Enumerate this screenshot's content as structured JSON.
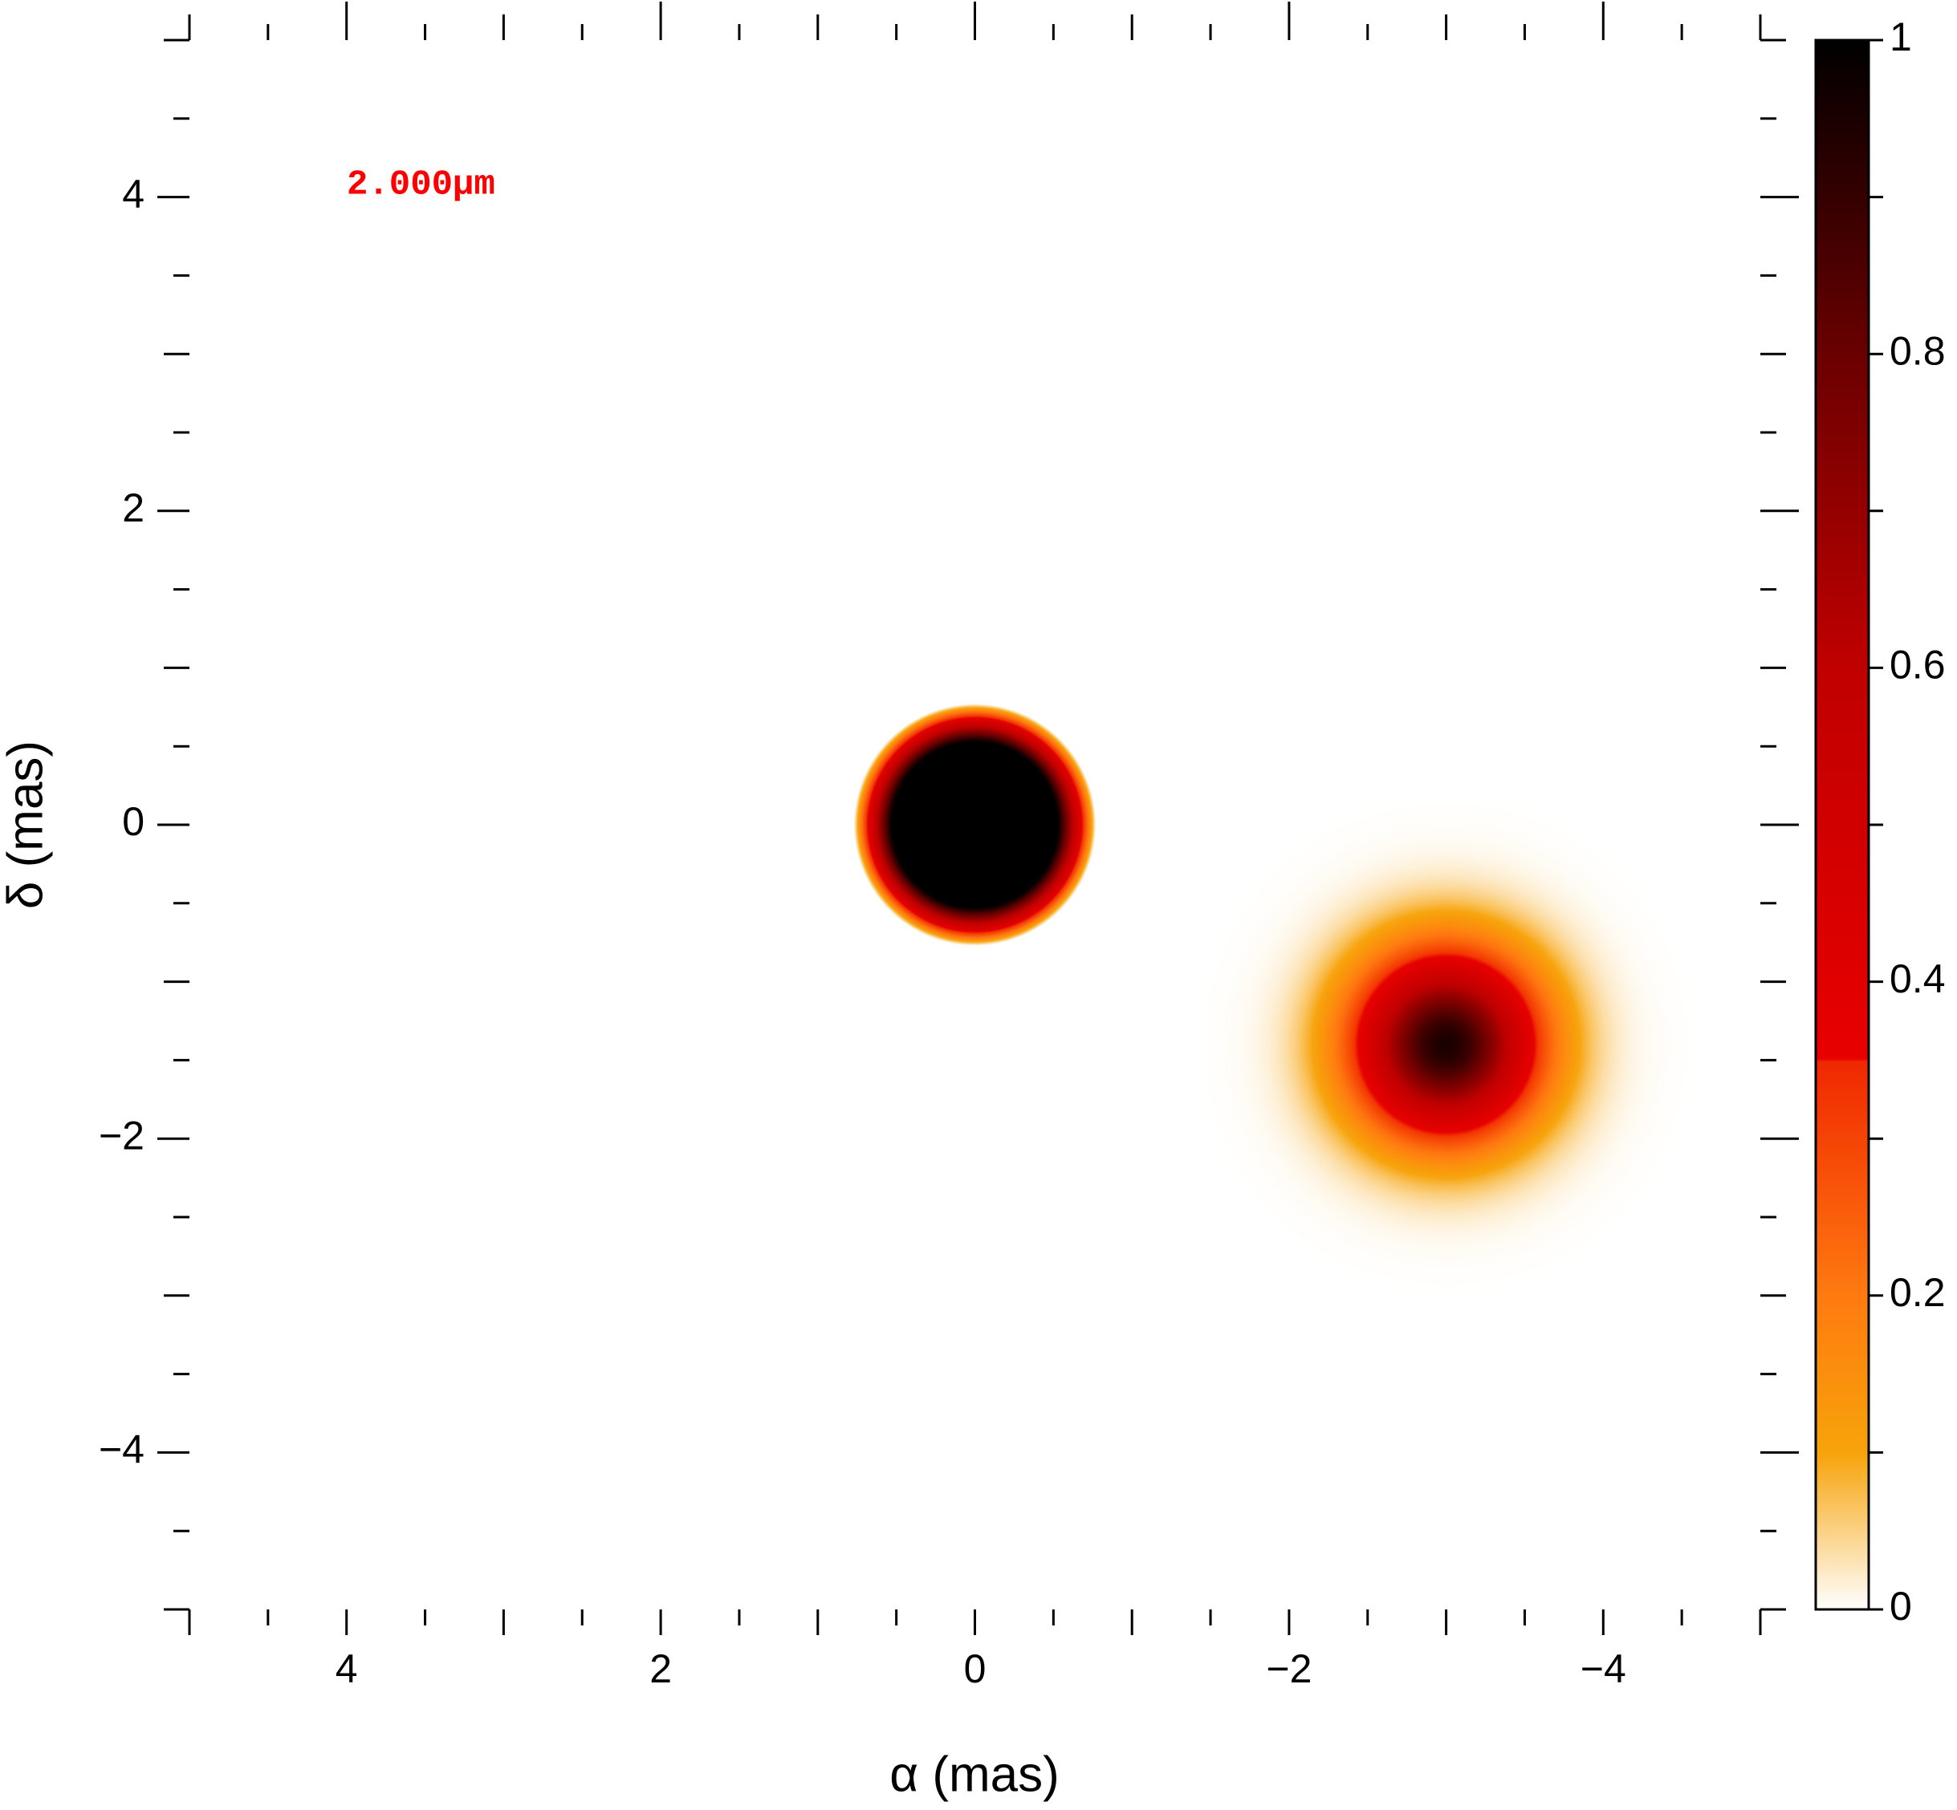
{
  "chart_data": {
    "type": "image",
    "xlabel": "α (mas)",
    "ylabel": "δ (mas)",
    "annotation": "2.000µm",
    "annotation_color": "#ff0000",
    "xlim": [
      5,
      -5
    ],
    "ylim": [
      -5,
      5
    ],
    "xticks": [
      4,
      2,
      0,
      {
        "value": -2,
        "label": "−2"
      },
      {
        "value": -4,
        "label": "−4"
      }
    ],
    "yticks": [
      4,
      2,
      0,
      {
        "value": -2,
        "label": "−2"
      },
      {
        "value": -4,
        "label": "−4"
      }
    ],
    "xminor": [
      5,
      4.5,
      3.5,
      3,
      2.5,
      1.5,
      1,
      0.5,
      -0.5,
      -1,
      -1.5,
      -2.5,
      -3,
      -3.5,
      -4.5,
      -5
    ],
    "yminor": [
      5,
      4.5,
      3.5,
      3,
      2.5,
      1.5,
      1,
      0.5,
      -0.5,
      -1,
      -1.5,
      -2.5,
      -3,
      -3.5,
      -4.5,
      -5
    ],
    "components": [
      {
        "shape": "disk",
        "x": 0,
        "y": 0,
        "diameter": 1.3,
        "edge": 0.12,
        "peak": 1
      },
      {
        "shape": "gaussian",
        "x": -3,
        "y": -1.4,
        "fwhm": 0.94,
        "peak": 0.95
      }
    ],
    "colorbar": {
      "lim": [
        0,
        1
      ],
      "ticks": [
        0,
        0.2,
        0.4,
        0.6,
        0.8,
        1
      ],
      "minor": [
        0.1,
        0.3,
        0.5,
        0.7,
        0.9
      ],
      "colormap": [
        {
          "value": 0,
          "color": "#ffffff"
        },
        {
          "value": 0.1,
          "color": "#f7a30a"
        },
        {
          "value": 0.2,
          "color": "#ff7a10"
        },
        {
          "value": 0.349,
          "color": "#f02800"
        },
        {
          "value": 0.351,
          "color": "#e80000"
        },
        {
          "value": 0.6,
          "color": "#c00000"
        },
        {
          "value": 0.8,
          "color": "#6a0000"
        },
        {
          "value": 1,
          "color": "#000000"
        }
      ]
    }
  }
}
